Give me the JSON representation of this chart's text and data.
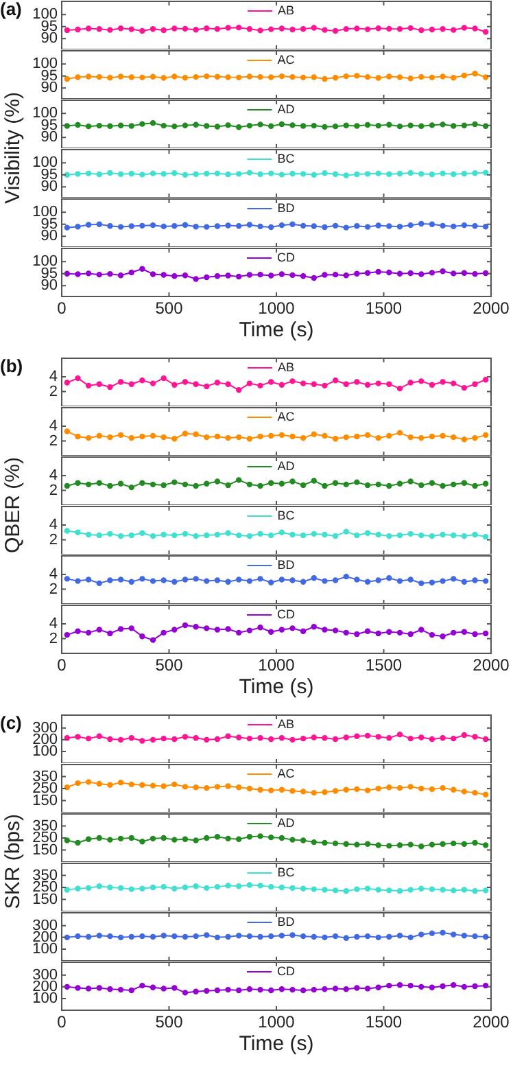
{
  "chart_data": [
    {
      "type": "line",
      "title": "(a)",
      "ylabel": "Visibility (%)",
      "x": [
        25,
        75,
        125,
        175,
        225,
        275,
        325,
        375,
        425,
        475,
        525,
        575,
        625,
        675,
        725,
        775,
        825,
        875,
        925,
        975,
        1025,
        1075,
        1125,
        1175,
        1225,
        1275,
        1325,
        1375,
        1425,
        1475,
        1525,
        1575,
        1625,
        1675,
        1725,
        1775,
        1825,
        1875,
        1925,
        1975
      ],
      "xlim": [
        0,
        2000
      ],
      "xticks": [
        0,
        500,
        1000,
        1500,
        2000
      ],
      "ylim": [
        85.5,
        105.5
      ],
      "yticks": [
        90,
        95,
        100
      ],
      "tick_labels": "y",
      "marker": "circle",
      "legend": "top",
      "series": [
        {
          "name": "AB",
          "color": "#ff1493",
          "values": [
            93.5,
            93.8,
            94.2,
            94.0,
            93.6,
            94.3,
            93.9,
            93.2,
            94.0,
            93.5,
            94.2,
            94.1,
            93.7,
            94.3,
            94.0,
            94.5,
            94.6,
            94.0,
            93.4,
            93.9,
            94.2,
            93.8,
            94.0,
            94.5,
            93.6,
            93.2,
            94.0,
            94.2,
            93.9,
            94.3,
            94.1,
            94.0,
            94.4,
            93.5,
            93.8,
            94.0,
            93.6,
            94.5,
            94.2,
            92.8
          ]
        }
      ]
    },
    {
      "type": "line",
      "x": [
        25,
        75,
        125,
        175,
        225,
        275,
        325,
        375,
        425,
        475,
        525,
        575,
        625,
        675,
        725,
        775,
        825,
        875,
        925,
        975,
        1025,
        1075,
        1125,
        1175,
        1225,
        1275,
        1325,
        1375,
        1425,
        1475,
        1525,
        1575,
        1625,
        1675,
        1725,
        1775,
        1825,
        1875,
        1925,
        1975
      ],
      "xlim": [
        0,
        2000
      ],
      "xticks": [
        0,
        500,
        1000,
        1500,
        2000
      ],
      "ylim": [
        85.5,
        105.5
      ],
      "yticks": [
        90,
        95,
        100
      ],
      "tick_labels": "y",
      "marker": "circle",
      "legend": "top",
      "series": [
        {
          "name": "AC",
          "color": "#ff8c00",
          "values": [
            93.8,
            94.5,
            94.8,
            94.6,
            94.3,
            94.8,
            94.5,
            94.4,
            94.7,
            94.2,
            94.8,
            94.3,
            94.6,
            94.9,
            94.7,
            94.5,
            94.4,
            94.8,
            94.6,
            94.5,
            94.9,
            94.6,
            94.4,
            94.5,
            93.8,
            94.3,
            94.9,
            95.1,
            94.6,
            94.2,
            94.8,
            94.5,
            94.0,
            94.6,
            94.4,
            94.8,
            94.3,
            95.2,
            96.0,
            94.5
          ]
        }
      ]
    },
    {
      "type": "line",
      "x": [
        25,
        75,
        125,
        175,
        225,
        275,
        325,
        375,
        425,
        475,
        525,
        575,
        625,
        675,
        725,
        775,
        825,
        875,
        925,
        975,
        1025,
        1075,
        1125,
        1175,
        1225,
        1275,
        1325,
        1375,
        1425,
        1475,
        1525,
        1575,
        1625,
        1675,
        1725,
        1775,
        1825,
        1875,
        1925,
        1975
      ],
      "xlim": [
        0,
        2000
      ],
      "xticks": [
        0,
        500,
        1000,
        1500,
        2000
      ],
      "ylim": [
        85.5,
        105.5
      ],
      "yticks": [
        90,
        95,
        100
      ],
      "tick_labels": "y",
      "marker": "circle",
      "legend": "top",
      "series": [
        {
          "name": "AD",
          "color": "#228b22",
          "values": [
            94.8,
            95.2,
            94.6,
            94.9,
            94.7,
            95.0,
            94.8,
            95.6,
            96.0,
            94.9,
            94.6,
            95.0,
            95.3,
            94.8,
            94.5,
            95.1,
            94.3,
            94.9,
            95.4,
            94.7,
            95.5,
            95.1,
            94.8,
            94.9,
            94.4,
            94.6,
            95.0,
            94.8,
            95.2,
            94.9,
            95.3,
            94.6,
            95.0,
            94.7,
            95.1,
            95.4,
            94.8,
            95.0,
            95.5,
            94.7
          ]
        }
      ]
    },
    {
      "type": "line",
      "x": [
        25,
        75,
        125,
        175,
        225,
        275,
        325,
        375,
        425,
        475,
        525,
        575,
        625,
        675,
        725,
        775,
        825,
        875,
        925,
        975,
        1025,
        1075,
        1125,
        1175,
        1225,
        1275,
        1325,
        1375,
        1425,
        1475,
        1525,
        1575,
        1625,
        1675,
        1725,
        1775,
        1825,
        1875,
        1925,
        1975
      ],
      "xlim": [
        0,
        2000
      ],
      "xticks": [
        0,
        500,
        1000,
        1500,
        2000
      ],
      "ylim": [
        85.5,
        105.5
      ],
      "yticks": [
        90,
        95,
        100
      ],
      "tick_labels": "y",
      "marker": "circle",
      "legend": "top",
      "series": [
        {
          "name": "BC",
          "color": "#40e0d0",
          "values": [
            95.0,
            95.4,
            95.6,
            95.2,
            95.8,
            95.3,
            95.5,
            95.1,
            95.6,
            95.4,
            95.7,
            95.0,
            95.3,
            95.5,
            95.6,
            95.2,
            95.4,
            95.9,
            95.3,
            95.6,
            95.1,
            95.5,
            95.4,
            95.0,
            95.7,
            95.3,
            94.8,
            95.2,
            95.4,
            95.6,
            95.3,
            95.5,
            95.8,
            95.4,
            95.2,
            95.6,
            95.3,
            95.5,
            95.7,
            95.9
          ]
        }
      ]
    },
    {
      "type": "line",
      "x": [
        25,
        75,
        125,
        175,
        225,
        275,
        325,
        375,
        425,
        475,
        525,
        575,
        625,
        675,
        725,
        775,
        825,
        875,
        925,
        975,
        1025,
        1075,
        1125,
        1175,
        1225,
        1275,
        1325,
        1375,
        1425,
        1475,
        1525,
        1575,
        1625,
        1675,
        1725,
        1775,
        1825,
        1875,
        1925,
        1975
      ],
      "xlim": [
        0,
        2000
      ],
      "xticks": [
        0,
        500,
        1000,
        1500,
        2000
      ],
      "ylim": [
        85.5,
        105.5
      ],
      "yticks": [
        90,
        95,
        100
      ],
      "tick_labels": "y",
      "marker": "circle",
      "legend": "top",
      "series": [
        {
          "name": "BD",
          "color": "#4169e1",
          "values": [
            93.6,
            94.0,
            94.8,
            95.0,
            94.3,
            93.9,
            94.2,
            94.4,
            94.6,
            94.1,
            94.3,
            94.7,
            94.0,
            93.9,
            94.2,
            94.5,
            94.3,
            94.8,
            94.1,
            93.8,
            94.6,
            95.0,
            94.4,
            94.2,
            93.8,
            94.4,
            93.6,
            94.3,
            93.9,
            94.5,
            94.2,
            94.0,
            94.6,
            95.2,
            95.0,
            94.4,
            94.1,
            94.6,
            94.3,
            94.0
          ]
        }
      ]
    },
    {
      "type": "line",
      "xlabel": "Time (s)",
      "x": [
        25,
        75,
        125,
        175,
        225,
        275,
        325,
        375,
        425,
        475,
        525,
        575,
        625,
        675,
        725,
        775,
        825,
        875,
        925,
        975,
        1025,
        1075,
        1125,
        1175,
        1225,
        1275,
        1325,
        1375,
        1425,
        1475,
        1525,
        1575,
        1625,
        1675,
        1725,
        1775,
        1825,
        1875,
        1925,
        1975
      ],
      "xlim": [
        0,
        2000
      ],
      "xticks": [
        0,
        500,
        1000,
        1500,
        2000
      ],
      "ylim": [
        85.5,
        105.5
      ],
      "yticks": [
        90,
        95,
        100
      ],
      "marker": "circle",
      "legend": "top",
      "series": [
        {
          "name": "CD",
          "color": "#9400d3",
          "values": [
            95.0,
            94.8,
            95.1,
            94.6,
            94.9,
            94.3,
            95.5,
            97.0,
            94.8,
            94.5,
            94.0,
            94.3,
            92.8,
            93.5,
            94.0,
            94.2,
            93.8,
            94.5,
            94.6,
            94.2,
            94.8,
            94.4,
            94.0,
            93.2,
            94.5,
            94.6,
            94.3,
            95.0,
            95.3,
            95.8,
            95.5,
            95.0,
            95.2,
            94.8,
            95.4,
            96.0,
            95.1,
            95.3,
            94.9,
            95.2
          ]
        }
      ]
    },
    {
      "type": "line",
      "title": "(b)",
      "ylabel": "QBER (%)",
      "x": [
        25,
        75,
        125,
        175,
        225,
        275,
        325,
        375,
        425,
        475,
        525,
        575,
        625,
        675,
        725,
        775,
        825,
        875,
        925,
        975,
        1025,
        1075,
        1125,
        1175,
        1225,
        1275,
        1325,
        1375,
        1425,
        1475,
        1525,
        1575,
        1625,
        1675,
        1725,
        1775,
        1825,
        1875,
        1925,
        1975
      ],
      "xlim": [
        0,
        2000
      ],
      "xticks": [
        0,
        500,
        1000,
        1500,
        2000
      ],
      "ylim": [
        0,
        6.5
      ],
      "yticks": [
        2,
        4
      ],
      "tick_labels": "y",
      "marker": "circle",
      "legend": "top",
      "series": [
        {
          "name": "AB",
          "color": "#ff1493",
          "values": [
            3.2,
            3.8,
            2.8,
            3.0,
            2.6,
            3.3,
            3.0,
            3.5,
            3.1,
            3.8,
            2.9,
            3.3,
            3.0,
            2.7,
            3.2,
            3.0,
            2.2,
            3.1,
            2.8,
            3.3,
            2.9,
            3.4,
            3.1,
            3.0,
            2.8,
            3.5,
            3.0,
            3.3,
            2.9,
            3.1,
            3.0,
            2.4,
            3.2,
            3.4,
            2.9,
            3.3,
            3.1,
            2.5,
            3.0,
            3.6
          ]
        }
      ]
    },
    {
      "type": "line",
      "x": [
        25,
        75,
        125,
        175,
        225,
        275,
        325,
        375,
        425,
        475,
        525,
        575,
        625,
        675,
        725,
        775,
        825,
        875,
        925,
        975,
        1025,
        1075,
        1125,
        1175,
        1225,
        1275,
        1325,
        1375,
        1425,
        1475,
        1525,
        1575,
        1625,
        1675,
        1725,
        1775,
        1825,
        1875,
        1925,
        1975
      ],
      "xlim": [
        0,
        2000
      ],
      "xticks": [
        0,
        500,
        1000,
        1500,
        2000
      ],
      "ylim": [
        0,
        6.5
      ],
      "yticks": [
        2,
        4
      ],
      "tick_labels": "y",
      "marker": "circle",
      "legend": "top",
      "series": [
        {
          "name": "AC",
          "color": "#ff8c00",
          "values": [
            3.3,
            2.6,
            2.4,
            2.7,
            2.5,
            2.8,
            2.4,
            2.6,
            2.7,
            2.5,
            2.3,
            3.0,
            2.9,
            2.5,
            2.6,
            2.4,
            2.5,
            2.3,
            2.6,
            2.7,
            2.8,
            2.6,
            2.4,
            2.9,
            2.7,
            2.3,
            2.5,
            2.6,
            2.8,
            2.4,
            2.7,
            3.1,
            2.5,
            2.4,
            2.6,
            2.7,
            2.5,
            2.2,
            2.4,
            2.8
          ]
        }
      ]
    },
    {
      "type": "line",
      "x": [
        25,
        75,
        125,
        175,
        225,
        275,
        325,
        375,
        425,
        475,
        525,
        575,
        625,
        675,
        725,
        775,
        825,
        875,
        925,
        975,
        1025,
        1075,
        1125,
        1175,
        1225,
        1275,
        1325,
        1375,
        1425,
        1475,
        1525,
        1575,
        1625,
        1675,
        1725,
        1775,
        1825,
        1875,
        1925,
        1975
      ],
      "xlim": [
        0,
        2000
      ],
      "xticks": [
        0,
        500,
        1000,
        1500,
        2000
      ],
      "ylim": [
        0,
        6.5
      ],
      "yticks": [
        2,
        4
      ],
      "tick_labels": "y",
      "marker": "circle",
      "legend": "top",
      "series": [
        {
          "name": "AD",
          "color": "#228b22",
          "values": [
            2.6,
            3.0,
            2.8,
            3.0,
            2.6,
            2.9,
            2.4,
            3.0,
            2.8,
            2.7,
            3.1,
            2.8,
            2.6,
            2.9,
            3.2,
            2.7,
            3.4,
            2.8,
            2.6,
            3.0,
            2.9,
            3.2,
            2.7,
            3.3,
            2.6,
            3.0,
            2.8,
            3.1,
            2.7,
            2.8,
            2.6,
            2.9,
            3.2,
            2.7,
            3.0,
            2.6,
            2.8,
            3.0,
            2.6,
            2.9
          ]
        }
      ]
    },
    {
      "type": "line",
      "x": [
        25,
        75,
        125,
        175,
        225,
        275,
        325,
        375,
        425,
        475,
        525,
        575,
        625,
        675,
        725,
        775,
        825,
        875,
        925,
        975,
        1025,
        1075,
        1125,
        1175,
        1225,
        1275,
        1325,
        1375,
        1425,
        1475,
        1525,
        1575,
        1625,
        1675,
        1725,
        1775,
        1825,
        1875,
        1925,
        1975
      ],
      "xlim": [
        0,
        2000
      ],
      "xticks": [
        0,
        500,
        1000,
        1500,
        2000
      ],
      "ylim": [
        0,
        6.5
      ],
      "yticks": [
        2,
        4
      ],
      "tick_labels": "y",
      "marker": "circle",
      "legend": "top",
      "series": [
        {
          "name": "BC",
          "color": "#40e0d0",
          "values": [
            3.2,
            3.0,
            2.7,
            2.6,
            2.8,
            2.5,
            2.6,
            2.9,
            2.5,
            2.7,
            2.6,
            2.8,
            2.5,
            2.6,
            2.7,
            2.9,
            2.6,
            2.5,
            2.8,
            2.6,
            3.0,
            2.7,
            2.6,
            2.8,
            2.7,
            2.5,
            3.1,
            2.6,
            2.9,
            2.7,
            2.5,
            2.6,
            2.8,
            2.6,
            2.5,
            2.7,
            2.6,
            2.5,
            2.7,
            2.4
          ]
        }
      ]
    },
    {
      "type": "line",
      "x": [
        25,
        75,
        125,
        175,
        225,
        275,
        325,
        375,
        425,
        475,
        525,
        575,
        625,
        675,
        725,
        775,
        825,
        875,
        925,
        975,
        1025,
        1075,
        1125,
        1175,
        1225,
        1275,
        1325,
        1375,
        1425,
        1475,
        1525,
        1575,
        1625,
        1675,
        1725,
        1775,
        1825,
        1875,
        1925,
        1975
      ],
      "xlim": [
        0,
        2000
      ],
      "xticks": [
        0,
        500,
        1000,
        1500,
        2000
      ],
      "ylim": [
        0,
        6.5
      ],
      "yticks": [
        2,
        4
      ],
      "tick_labels": "y",
      "marker": "circle",
      "legend": "top",
      "series": [
        {
          "name": "BD",
          "color": "#4169e1",
          "values": [
            3.4,
            3.1,
            3.3,
            2.8,
            3.2,
            3.3,
            3.0,
            3.4,
            3.1,
            3.2,
            3.0,
            3.3,
            3.4,
            3.1,
            3.2,
            3.0,
            3.3,
            3.1,
            3.4,
            2.9,
            3.3,
            3.2,
            3.0,
            3.5,
            3.1,
            3.2,
            3.7,
            3.3,
            3.0,
            3.2,
            3.5,
            3.1,
            3.3,
            2.8,
            2.9,
            3.1,
            3.4,
            3.0,
            3.2,
            3.1
          ]
        }
      ]
    },
    {
      "type": "line",
      "xlabel": "Time (s)",
      "x": [
        25,
        75,
        125,
        175,
        225,
        275,
        325,
        375,
        425,
        475,
        525,
        575,
        625,
        675,
        725,
        775,
        825,
        875,
        925,
        975,
        1025,
        1075,
        1125,
        1175,
        1225,
        1275,
        1325,
        1375,
        1425,
        1475,
        1525,
        1575,
        1625,
        1675,
        1725,
        1775,
        1825,
        1875,
        1925,
        1975
      ],
      "xlim": [
        0,
        2000
      ],
      "xticks": [
        0,
        500,
        1000,
        1500,
        2000
      ],
      "ylim": [
        0,
        6.5
      ],
      "yticks": [
        2,
        4
      ],
      "marker": "circle",
      "legend": "top",
      "series": [
        {
          "name": "CD",
          "color": "#9400d3",
          "values": [
            2.5,
            3.0,
            2.8,
            3.2,
            2.7,
            3.3,
            3.4,
            2.3,
            1.8,
            2.8,
            3.2,
            3.8,
            3.6,
            3.4,
            3.2,
            3.3,
            2.8,
            3.1,
            3.5,
            2.9,
            3.2,
            3.4,
            3.0,
            3.6,
            3.2,
            3.1,
            2.8,
            2.6,
            3.0,
            2.7,
            2.9,
            2.8,
            2.6,
            3.2,
            2.5,
            2.3,
            2.8,
            2.9,
            2.6,
            2.7
          ]
        }
      ]
    },
    {
      "type": "line",
      "title": "(c)",
      "ylabel": "SKR (bps)",
      "x": [
        25,
        75,
        125,
        175,
        225,
        275,
        325,
        375,
        425,
        475,
        525,
        575,
        625,
        675,
        725,
        775,
        825,
        875,
        925,
        975,
        1025,
        1075,
        1125,
        1175,
        1225,
        1275,
        1325,
        1375,
        1425,
        1475,
        1525,
        1575,
        1625,
        1675,
        1725,
        1775,
        1825,
        1875,
        1925,
        1975
      ],
      "xlim": [
        0,
        2000
      ],
      "xticks": [
        0,
        500,
        1000,
        1500,
        2000
      ],
      "ylim": [
        0,
        410
      ],
      "yticks": [
        100,
        200,
        300
      ],
      "tick_labels": "y",
      "marker": "circle",
      "legend": "top",
      "series": [
        {
          "name": "AB",
          "color": "#ff1493",
          "values": [
            215,
            225,
            210,
            230,
            205,
            200,
            215,
            190,
            200,
            210,
            205,
            225,
            215,
            200,
            205,
            230,
            220,
            210,
            215,
            205,
            215,
            200,
            210,
            220,
            215,
            205,
            220,
            230,
            235,
            225,
            215,
            245,
            210,
            220,
            205,
            215,
            210,
            240,
            225,
            205
          ]
        }
      ]
    },
    {
      "type": "line",
      "x": [
        25,
        75,
        125,
        175,
        225,
        275,
        325,
        375,
        425,
        475,
        525,
        575,
        625,
        675,
        725,
        775,
        825,
        875,
        925,
        975,
        1025,
        1075,
        1125,
        1175,
        1225,
        1275,
        1325,
        1375,
        1425,
        1475,
        1525,
        1575,
        1625,
        1675,
        1725,
        1775,
        1825,
        1875,
        1925,
        1975
      ],
      "xlim": [
        0,
        2000
      ],
      "xticks": [
        0,
        500,
        1000,
        1500,
        2000
      ],
      "ylim": [
        50,
        450
      ],
      "yticks": [
        150,
        250,
        350
      ],
      "tick_labels": "y",
      "marker": "circle",
      "legend": "top",
      "series": [
        {
          "name": "AC",
          "color": "#ff8c00",
          "values": [
            260,
            295,
            305,
            290,
            280,
            300,
            285,
            280,
            275,
            270,
            285,
            265,
            260,
            255,
            265,
            270,
            260,
            250,
            240,
            235,
            240,
            230,
            225,
            215,
            220,
            230,
            240,
            245,
            235,
            250,
            260,
            255,
            265,
            250,
            245,
            255,
            240,
            225,
            215,
            200
          ]
        }
      ]
    },
    {
      "type": "line",
      "x": [
        25,
        75,
        125,
        175,
        225,
        275,
        325,
        375,
        425,
        475,
        525,
        575,
        625,
        675,
        725,
        775,
        825,
        875,
        925,
        975,
        1025,
        1075,
        1125,
        1175,
        1225,
        1275,
        1325,
        1375,
        1425,
        1475,
        1525,
        1575,
        1625,
        1675,
        1725,
        1775,
        1825,
        1875,
        1925,
        1975
      ],
      "xlim": [
        0,
        2000
      ],
      "xticks": [
        0,
        500,
        1000,
        1500,
        2000
      ],
      "ylim": [
        50,
        450
      ],
      "yticks": [
        150,
        250,
        350
      ],
      "tick_labels": "y",
      "marker": "circle",
      "legend": "top",
      "series": [
        {
          "name": "AD",
          "color": "#228b22",
          "values": [
            230,
            210,
            240,
            250,
            235,
            245,
            250,
            220,
            245,
            250,
            235,
            240,
            230,
            250,
            260,
            245,
            240,
            260,
            265,
            255,
            250,
            235,
            230,
            215,
            210,
            205,
            200,
            195,
            200,
            190,
            185,
            190,
            195,
            180,
            195,
            200,
            205,
            200,
            210,
            190
          ]
        }
      ]
    },
    {
      "type": "line",
      "x": [
        25,
        75,
        125,
        175,
        225,
        275,
        325,
        375,
        425,
        475,
        525,
        575,
        625,
        675,
        725,
        775,
        825,
        875,
        925,
        975,
        1025,
        1075,
        1125,
        1175,
        1225,
        1275,
        1325,
        1375,
        1425,
        1475,
        1525,
        1575,
        1625,
        1675,
        1725,
        1775,
        1825,
        1875,
        1925,
        1975
      ],
      "xlim": [
        0,
        2000
      ],
      "xticks": [
        0,
        500,
        1000,
        1500,
        2000
      ],
      "ylim": [
        50,
        450
      ],
      "yticks": [
        150,
        250,
        350
      ],
      "tick_labels": "y",
      "marker": "circle",
      "legend": "top",
      "series": [
        {
          "name": "BC",
          "color": "#40e0d0",
          "values": [
            230,
            240,
            245,
            260,
            250,
            245,
            235,
            240,
            250,
            255,
            240,
            250,
            260,
            245,
            255,
            265,
            260,
            270,
            265,
            255,
            250,
            245,
            240,
            235,
            230,
            225,
            220,
            235,
            240,
            230,
            225,
            220,
            230,
            240,
            235,
            230,
            225,
            230,
            220,
            225
          ]
        }
      ]
    },
    {
      "type": "line",
      "x": [
        25,
        75,
        125,
        175,
        225,
        275,
        325,
        375,
        425,
        475,
        525,
        575,
        625,
        675,
        725,
        775,
        825,
        875,
        925,
        975,
        1025,
        1075,
        1125,
        1175,
        1225,
        1275,
        1325,
        1375,
        1425,
        1475,
        1525,
        1575,
        1625,
        1675,
        1725,
        1775,
        1825,
        1875,
        1925,
        1975
      ],
      "xlim": [
        0,
        2000
      ],
      "xticks": [
        0,
        500,
        1000,
        1500,
        2000
      ],
      "ylim": [
        0,
        410
      ],
      "yticks": [
        100,
        200,
        300
      ],
      "tick_labels": "y",
      "marker": "circle",
      "legend": "top",
      "series": [
        {
          "name": "BD",
          "color": "#4169e1",
          "values": [
            200,
            210,
            205,
            215,
            210,
            200,
            205,
            210,
            205,
            215,
            210,
            205,
            210,
            220,
            200,
            205,
            215,
            210,
            205,
            210,
            215,
            220,
            210,
            205,
            200,
            210,
            195,
            205,
            210,
            200,
            205,
            215,
            200,
            225,
            235,
            240,
            225,
            215,
            210,
            205
          ]
        }
      ]
    },
    {
      "type": "line",
      "xlabel": "Time (s)",
      "x": [
        25,
        75,
        125,
        175,
        225,
        275,
        325,
        375,
        425,
        475,
        525,
        575,
        625,
        675,
        725,
        775,
        825,
        875,
        925,
        975,
        1025,
        1075,
        1125,
        1175,
        1225,
        1275,
        1325,
        1375,
        1425,
        1475,
        1525,
        1575,
        1625,
        1675,
        1725,
        1775,
        1825,
        1875,
        1925,
        1975
      ],
      "xlim": [
        0,
        2000
      ],
      "xticks": [
        0,
        500,
        1000,
        1500,
        2000
      ],
      "ylim": [
        0,
        410
      ],
      "yticks": [
        100,
        200,
        300
      ],
      "marker": "circle",
      "legend": "top",
      "series": [
        {
          "name": "CD",
          "color": "#9400d3",
          "values": [
            200,
            190,
            185,
            190,
            180,
            175,
            170,
            210,
            195,
            185,
            190,
            150,
            160,
            165,
            170,
            175,
            170,
            180,
            175,
            170,
            180,
            175,
            170,
            175,
            180,
            185,
            180,
            190,
            185,
            195,
            210,
            215,
            210,
            200,
            195,
            205,
            215,
            200,
            205,
            210
          ]
        }
      ]
    }
  ]
}
